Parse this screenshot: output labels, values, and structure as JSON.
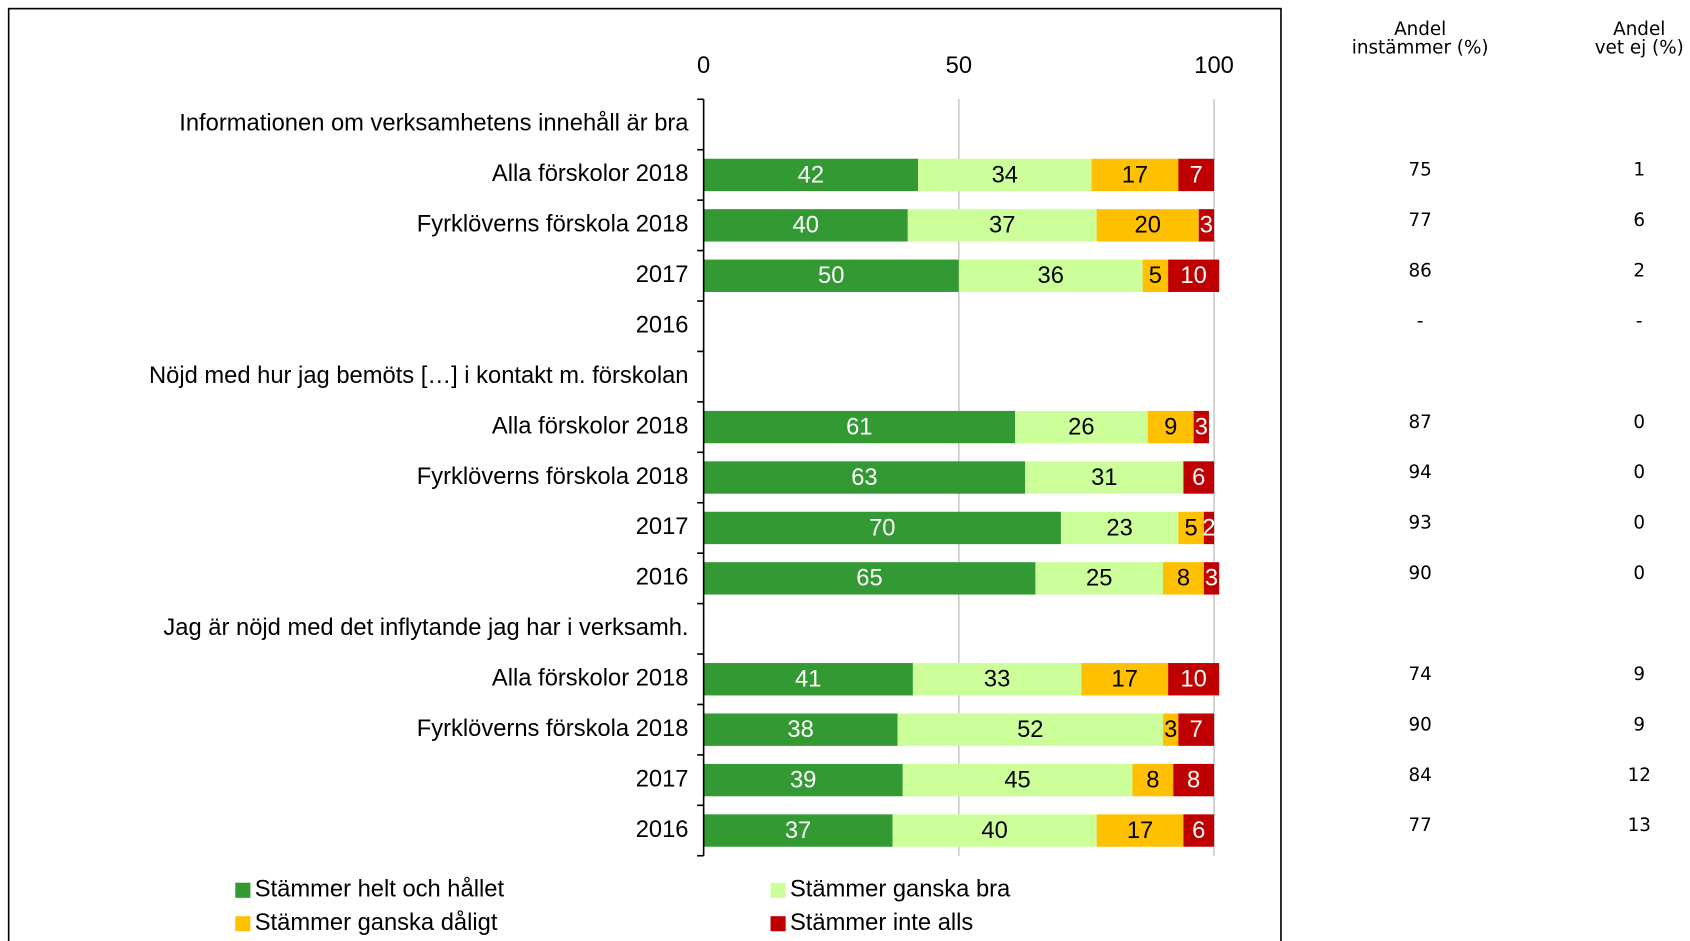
{
  "chart_data": {
    "type": "stacked_barh",
    "categories": [
      "Informationen om verksamhetens innehåll är bra",
      "Alla förskolor 2018",
      "Fyrklöverns förskola 2018",
      "2017",
      "2016",
      "Nöjd med hur jag bemöts […] i kontakt m. förskolan",
      "Alla förskolor 2018",
      "Fyrklöverns förskola 2018",
      "2017",
      "2016",
      "Jag är nöjd med det inflytande jag har i verksamh.",
      "Alla förskolor 2018",
      "Fyrklöverns förskola 2018",
      "2017",
      "2016"
    ],
    "series": [
      {
        "name": "Stämmer helt och hållet",
        "color": "#339933",
        "values": [
          null,
          42,
          40,
          50,
          null,
          null,
          61,
          63,
          70,
          65,
          null,
          41,
          38,
          39,
          37
        ]
      },
      {
        "name": "Stämmer ganska bra",
        "color": "#ccff99",
        "values": [
          null,
          34,
          37,
          36,
          null,
          null,
          26,
          31,
          23,
          25,
          null,
          33,
          52,
          45,
          40
        ]
      },
      {
        "name": "Stämmer ganska dåligt",
        "color": "#ffc000",
        "values": [
          null,
          17,
          20,
          5,
          null,
          null,
          9,
          null,
          5,
          8,
          null,
          17,
          3,
          8,
          17
        ]
      },
      {
        "name": "Stämmer inte alls",
        "color": "#c00000",
        "values": [
          null,
          7,
          3,
          10,
          null,
          null,
          3,
          6,
          2,
          3,
          null,
          10,
          7,
          8,
          6
        ]
      }
    ],
    "xlim": [
      0,
      100
    ],
    "xticks": [
      0,
      50,
      100
    ],
    "grid": true,
    "table": [
      {
        "header": [
          "Andel",
          "instämmer (%)"
        ],
        "values": [
          null,
          75,
          77,
          86,
          "-",
          null,
          87,
          94,
          93,
          90,
          null,
          74,
          90,
          84,
          77
        ]
      },
      {
        "header": [
          "Andel",
          "vet ej (%)"
        ],
        "values": [
          null,
          1,
          6,
          2,
          "-",
          null,
          0,
          0,
          0,
          0,
          null,
          9,
          9,
          12,
          13
        ]
      }
    ]
  }
}
